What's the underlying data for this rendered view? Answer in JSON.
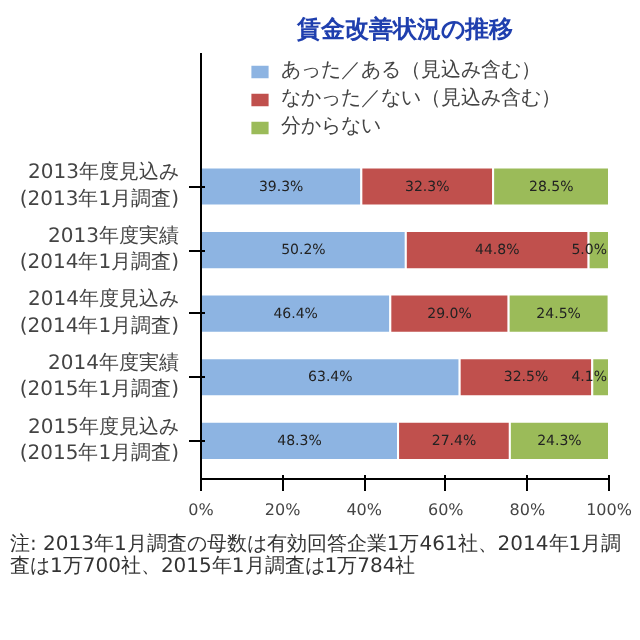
{
  "chart_data": {
    "type": "bar",
    "orientation": "horizontal",
    "stacked": true,
    "title": "賃金改善状況の推移",
    "categories": [
      "2013年度見込み\n(2013年1月調査)",
      "2013年度実績\n(2014年1月調査)",
      "2014年度見込み\n(2014年1月調査)",
      "2014年度実績\n(2015年1月調査)",
      "2015年度見込み\n(2015年1月調査)"
    ],
    "series": [
      {
        "name": "あった／ある（見込み含む）",
        "color": "#8db4e2",
        "values": [
          39.3,
          50.2,
          46.4,
          63.4,
          48.3
        ],
        "value_labels": [
          "39.3%",
          "50.2%",
          "46.4%",
          "63.4%",
          "48.3%"
        ]
      },
      {
        "name": "なかった／ない（見込み含む）",
        "color": "#c0504d",
        "values": [
          32.3,
          44.8,
          29.0,
          32.5,
          27.4
        ],
        "value_labels": [
          "32.3%",
          "44.8%",
          "29.0%",
          "32.5%",
          "27.4%"
        ]
      },
      {
        "name": "分からない",
        "color": "#9bbb59",
        "values": [
          28.5,
          5.0,
          24.5,
          4.1,
          24.3
        ],
        "value_labels": [
          "28.5%",
          "5.0%",
          "24.5%",
          "4.1%",
          "24.3%"
        ]
      }
    ],
    "legend": "top",
    "xlim": [
      0,
      100
    ],
    "xticks": [
      {
        "value": 0,
        "label": "0%"
      },
      {
        "value": 20,
        "label": "20%"
      },
      {
        "value": 40,
        "label": "40%"
      },
      {
        "value": 60,
        "label": "60%"
      },
      {
        "value": 80,
        "label": "80%"
      },
      {
        "value": 100,
        "label": "100%"
      }
    ],
    "annotations": [
      "注: 2013年1月調査の母数は有効回答企業1万461社、2014年1月調査は1万700社、2015年1月調査は1万784社"
    ]
  }
}
